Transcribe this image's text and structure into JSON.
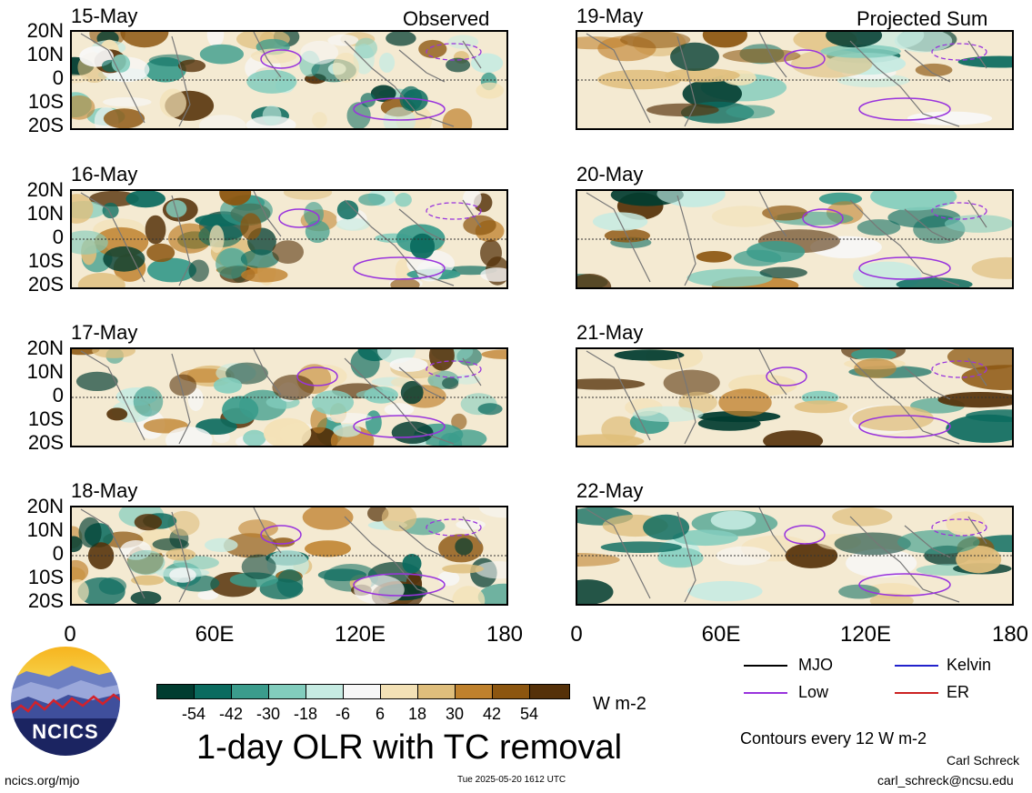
{
  "observed_label": "Observed",
  "projected_label": "Projected Sum",
  "lat_labels": [
    "20N",
    "10N",
    "0",
    "10S",
    "20S"
  ],
  "lon_labels": [
    "0",
    "60E",
    "120E",
    "180"
  ],
  "left_panels": [
    {
      "date": "15-May"
    },
    {
      "date": "16-May"
    },
    {
      "date": "17-May"
    },
    {
      "date": "18-May"
    }
  ],
  "right_panels": [
    {
      "date": "19-May"
    },
    {
      "date": "20-May"
    },
    {
      "date": "21-May"
    },
    {
      "date": "22-May"
    }
  ],
  "colorbar": {
    "ticks": [
      "-54",
      "-42",
      "-30",
      "-18",
      "-6",
      "6",
      "18",
      "30",
      "42",
      "54"
    ],
    "colors": [
      "#013c30",
      "#0b6b5f",
      "#3b9c8c",
      "#82cdbd",
      "#c6ebe2",
      "#f7f7f7",
      "#f3e1b6",
      "#dfbe7c",
      "#bf812d",
      "#8c5610",
      "#553109"
    ],
    "units": "W m-2"
  },
  "legend": {
    "items": [
      {
        "label": "MJO",
        "color": "#000000"
      },
      {
        "label": "Kelvin",
        "color": "#2222cc"
      },
      {
        "label": "Low",
        "color": "#9933dd"
      },
      {
        "label": "ER",
        "color": "#cc2222"
      }
    ],
    "contours_note": "Contours every 12 W m-2"
  },
  "main_title": "1-day OLR with TC removal",
  "logo_text": "NCICS",
  "footer": {
    "url": "ncics.org/mjo",
    "timestamp": "Tue 2025-05-20 1612 UTC",
    "author": "Carl Schreck",
    "email": "carl_schreck@ncsu.edu"
  }
}
